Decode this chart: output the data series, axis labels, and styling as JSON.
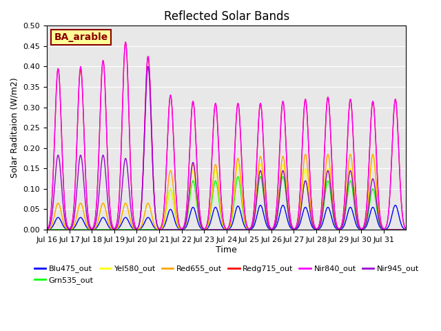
{
  "title": "Reflected Solar Bands",
  "xlabel": "Time",
  "ylabel": "Solar Raditaion (W/m2)",
  "annotation_text": "BA_arable",
  "annotation_color": "#8B0000",
  "annotation_bg": "#FFFF99",
  "annotation_border": "#8B0000",
  "ylim": [
    0.0,
    0.5
  ],
  "background_color": "#e8e8e8",
  "series": {
    "Blu475_out": {
      "color": "#0000FF"
    },
    "Grn535_out": {
      "color": "#00FF00"
    },
    "Yel580_out": {
      "color": "#FFFF00"
    },
    "Red655_out": {
      "color": "#FFA500"
    },
    "Redg715_out": {
      "color": "#FF0000"
    },
    "Nir840_out": {
      "color": "#FF00FF"
    },
    "Nir945_out": {
      "color": "#9900CC"
    }
  },
  "xtick_labels": [
    "Jul 16",
    "Jul 17",
    "Jul 18",
    "Jul 19",
    "Jul 20",
    "Jul 21",
    "Jul 22",
    "Jul 23",
    "Jul 24",
    "Jul 25",
    "Jul 26",
    "Jul 27",
    "Jul 28",
    "Jul 29",
    "Jul 30",
    "Jul 31"
  ],
  "num_days": 16,
  "peaks": {
    "Blu475_out": [
      0.03,
      0.03,
      0.03,
      0.03,
      0.03,
      0.05,
      0.055,
      0.055,
      0.058,
      0.06,
      0.06,
      0.055,
      0.055,
      0.055,
      0.055,
      0.06
    ],
    "Grn535_out": [
      0.0,
      0.0,
      0.0,
      0.0,
      0.0,
      0.1,
      0.12,
      0.12,
      0.13,
      0.13,
      0.13,
      0.12,
      0.12,
      0.12,
      0.1,
      0.0
    ],
    "Yel580_out": [
      0.065,
      0.065,
      0.065,
      0.065,
      0.065,
      0.1,
      0.145,
      0.145,
      0.16,
      0.16,
      0.16,
      0.15,
      0.15,
      0.15,
      0.18,
      0.0
    ],
    "Red655_out": [
      0.065,
      0.065,
      0.065,
      0.065,
      0.065,
      0.145,
      0.16,
      0.16,
      0.175,
      0.18,
      0.18,
      0.185,
      0.185,
      0.185,
      0.185,
      0.0
    ],
    "Redg715_out": [
      0.395,
      0.395,
      0.415,
      0.46,
      0.425,
      0.33,
      0.315,
      0.31,
      0.31,
      0.31,
      0.315,
      0.32,
      0.325,
      0.32,
      0.315,
      0.32
    ],
    "Nir840_out": [
      0.395,
      0.4,
      0.415,
      0.46,
      0.425,
      0.33,
      0.315,
      0.31,
      0.31,
      0.31,
      0.315,
      0.32,
      0.325,
      0.32,
      0.315,
      0.32
    ],
    "Nir945_out": [
      0.183,
      0.183,
      0.183,
      0.175,
      0.4,
      0.0,
      0.165,
      0.0,
      0.0,
      0.145,
      0.145,
      0.12,
      0.145,
      0.145,
      0.125,
      0.0
    ]
  },
  "ytick_labels": [
    0.0,
    0.05,
    0.1,
    0.15,
    0.2,
    0.25,
    0.3,
    0.35,
    0.4,
    0.45,
    0.5
  ]
}
